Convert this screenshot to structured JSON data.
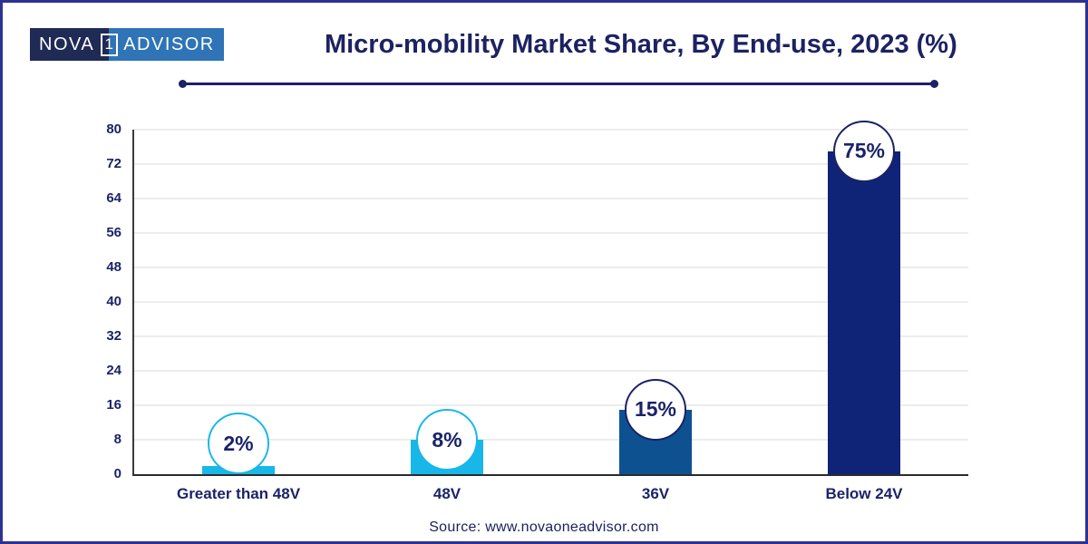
{
  "logo": {
    "part1": "NOVA",
    "middle": "1",
    "part2": "ADVISOR",
    "navy_bg": "#1f2a55",
    "blue_bg": "#2e74b6"
  },
  "header": {
    "accent_color": "#1b2265"
  },
  "source": {
    "label": "Source: www.novaoneadvisor.com"
  },
  "chart_data": {
    "type": "bar",
    "title": "Micro-mobility Market Share, By End-use, 2023 (%)",
    "categories": [
      "Greater than 48V",
      "48V",
      "36V",
      "Below 24V"
    ],
    "values": [
      2,
      8,
      15,
      75
    ],
    "value_labels": [
      "2%",
      "8%",
      "15%",
      "75%"
    ],
    "bar_colors": [
      "#18b7e9",
      "#18b7e9",
      "#0e5191",
      "#0f2377"
    ],
    "circle_border_colors": [
      "#18b7e9",
      "#18b7e9",
      "#1b2265",
      "#1b2265"
    ],
    "xlabel": "",
    "ylabel": "",
    "ylim": [
      0,
      80
    ],
    "yticks": [
      0,
      8,
      16,
      24,
      32,
      40,
      48,
      56,
      64,
      72,
      80
    ],
    "grid": true,
    "legend": false,
    "label_color": "#1b2368",
    "gridline_color": "#ededed"
  }
}
